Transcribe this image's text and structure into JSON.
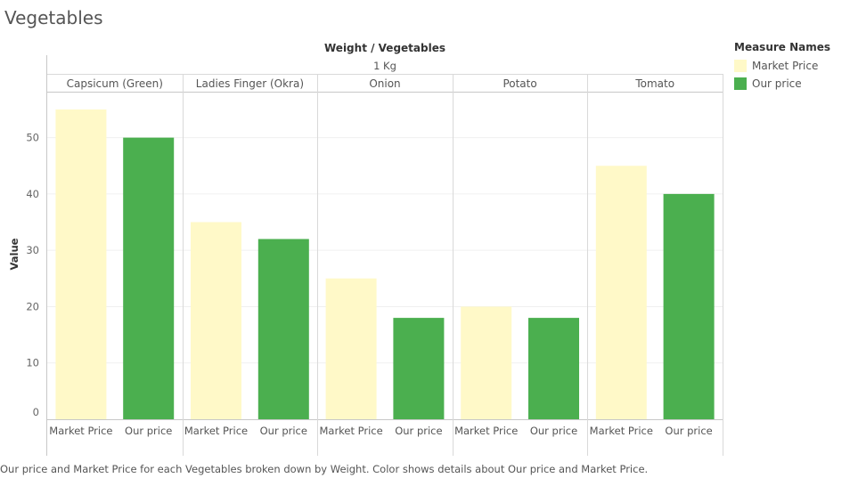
{
  "page_title": "Vegetables",
  "caption": "Our price and Market Price for each Vegetables broken down by Weight.  Color shows details about Our price and Market Price.",
  "legend": {
    "title": "Measure Names",
    "items": [
      {
        "label": "Market Price",
        "color": "#FFF9C8"
      },
      {
        "label": "Our price",
        "color": "#4BAF4F"
      }
    ]
  },
  "chart_data": {
    "type": "bar",
    "column_header": "Weight / Vegetables",
    "weight": "1 Kg",
    "ylabel": "Value",
    "ylim": [
      0,
      58
    ],
    "yticks": [
      0,
      10,
      20,
      30,
      40,
      50
    ],
    "grid": true,
    "legend_position": "right",
    "categories": [
      "Capsicum (Green)",
      "Ladies Finger (Okra)",
      "Onion",
      "Potato",
      "Tomato"
    ],
    "series": [
      {
        "name": "Market Price",
        "color": "#FFF9C8",
        "values": [
          55,
          35,
          25,
          20,
          45
        ]
      },
      {
        "name": "Our price",
        "color": "#4BAF4F",
        "values": [
          50,
          32,
          18,
          18,
          40
        ]
      }
    ]
  }
}
